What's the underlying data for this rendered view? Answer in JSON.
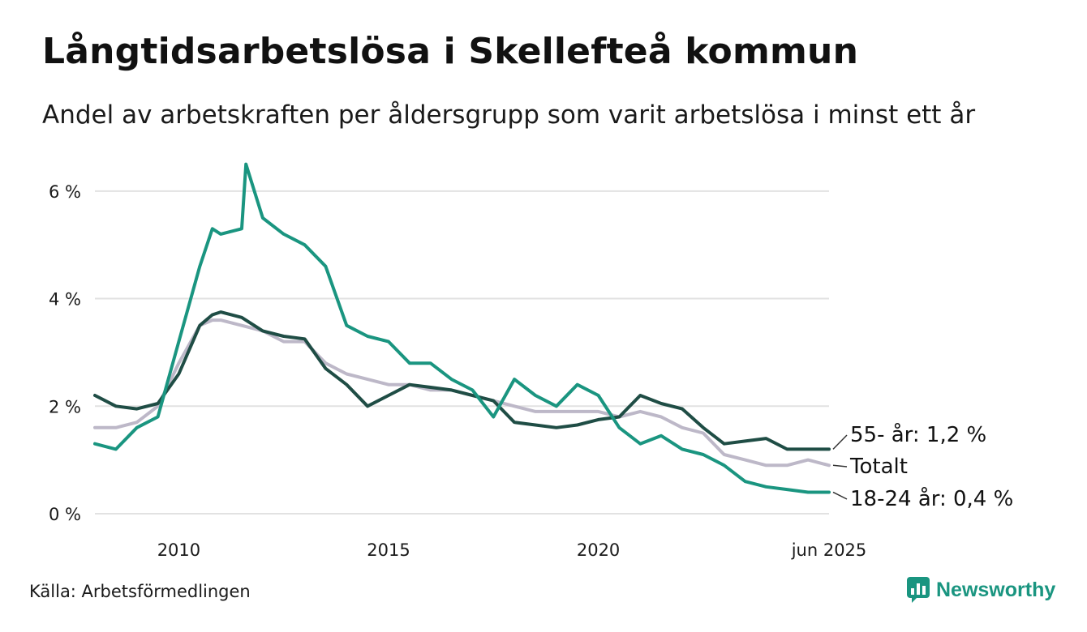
{
  "title": "Långtidsarbetslösa i Skellefteå kommun",
  "subtitle": "Andel av arbetskraften per åldersgrupp som varit arbetslösa i minst ett år",
  "source": "Källa: Arbetsförmedlingen",
  "brand": "Newsworthy",
  "colors": {
    "brand": "#1a9580"
  },
  "chart_data": {
    "type": "line",
    "xlim": [
      2008.0,
      2025.5
    ],
    "ylim": [
      0,
      6.6
    ],
    "y_ticks": [
      0,
      2,
      4,
      6
    ],
    "y_tick_labels": [
      "0 %",
      "2 %",
      "4 %",
      "6 %"
    ],
    "x_ticks": [
      2010,
      2015,
      2020,
      2025.5
    ],
    "x_tick_labels": [
      "2010",
      "2015",
      "2020",
      "jun 2025"
    ],
    "grid": true,
    "series": [
      {
        "name": "Totalt",
        "label": "Totalt",
        "color": "#bdb8c8",
        "x": [
          2008.0,
          2008.5,
          2009.0,
          2009.5,
          2010.0,
          2010.5,
          2010.8,
          2011.0,
          2011.5,
          2012.0,
          2012.5,
          2013.0,
          2013.5,
          2014.0,
          2014.5,
          2015.0,
          2015.5,
          2016.0,
          2016.5,
          2017.0,
          2017.5,
          2018.0,
          2018.5,
          2019.0,
          2019.5,
          2020.0,
          2020.5,
          2021.0,
          2021.5,
          2022.0,
          2022.5,
          2023.0,
          2023.5,
          2024.0,
          2024.5,
          2025.0,
          2025.5
        ],
        "values": [
          1.6,
          1.6,
          1.7,
          2.0,
          2.8,
          3.5,
          3.6,
          3.6,
          3.5,
          3.4,
          3.2,
          3.2,
          2.8,
          2.6,
          2.5,
          2.4,
          2.4,
          2.3,
          2.3,
          2.2,
          2.1,
          2.0,
          1.9,
          1.9,
          1.9,
          1.9,
          1.8,
          1.9,
          1.8,
          1.6,
          1.5,
          1.1,
          1.0,
          0.9,
          0.9,
          1.0,
          0.9
        ]
      },
      {
        "name": "55- år",
        "label": "55- år: 1,2 %",
        "color": "#1f4d45",
        "x": [
          2008.0,
          2008.5,
          2009.0,
          2009.5,
          2010.0,
          2010.5,
          2010.8,
          2011.0,
          2011.5,
          2012.0,
          2012.5,
          2013.0,
          2013.5,
          2014.0,
          2014.5,
          2015.0,
          2015.5,
          2016.0,
          2016.5,
          2017.0,
          2017.5,
          2018.0,
          2018.5,
          2019.0,
          2019.5,
          2020.0,
          2020.5,
          2021.0,
          2021.5,
          2022.0,
          2022.5,
          2023.0,
          2023.5,
          2024.0,
          2024.5,
          2025.0,
          2025.5
        ],
        "values": [
          2.2,
          2.0,
          1.95,
          2.05,
          2.6,
          3.5,
          3.7,
          3.75,
          3.65,
          3.4,
          3.3,
          3.25,
          2.7,
          2.4,
          2.0,
          2.2,
          2.4,
          2.35,
          2.3,
          2.2,
          2.1,
          1.7,
          1.65,
          1.6,
          1.65,
          1.75,
          1.8,
          2.2,
          2.05,
          1.95,
          1.6,
          1.3,
          1.35,
          1.4,
          1.2,
          1.2,
          1.2
        ]
      },
      {
        "name": "18-24 år",
        "label": "18-24 år: 0,4 %",
        "color": "#1a9580",
        "x": [
          2008.0,
          2008.5,
          2009.0,
          2009.5,
          2010.0,
          2010.5,
          2010.8,
          2011.0,
          2011.5,
          2011.6,
          2012.0,
          2012.5,
          2013.0,
          2013.5,
          2014.0,
          2014.5,
          2015.0,
          2015.5,
          2016.0,
          2016.5,
          2017.0,
          2017.5,
          2018.0,
          2018.5,
          2019.0,
          2019.5,
          2020.0,
          2020.5,
          2021.0,
          2021.5,
          2022.0,
          2022.5,
          2023.0,
          2023.5,
          2024.0,
          2024.5,
          2025.0,
          2025.5
        ],
        "values": [
          1.3,
          1.2,
          1.6,
          1.8,
          3.2,
          4.6,
          5.3,
          5.2,
          5.3,
          6.5,
          5.5,
          5.2,
          5.0,
          4.6,
          3.5,
          3.3,
          3.2,
          2.8,
          2.8,
          2.5,
          2.3,
          1.8,
          2.5,
          2.2,
          2.0,
          2.4,
          2.2,
          1.6,
          1.3,
          1.45,
          1.2,
          1.1,
          0.9,
          0.6,
          0.5,
          0.45,
          0.4,
          0.4
        ]
      }
    ]
  }
}
